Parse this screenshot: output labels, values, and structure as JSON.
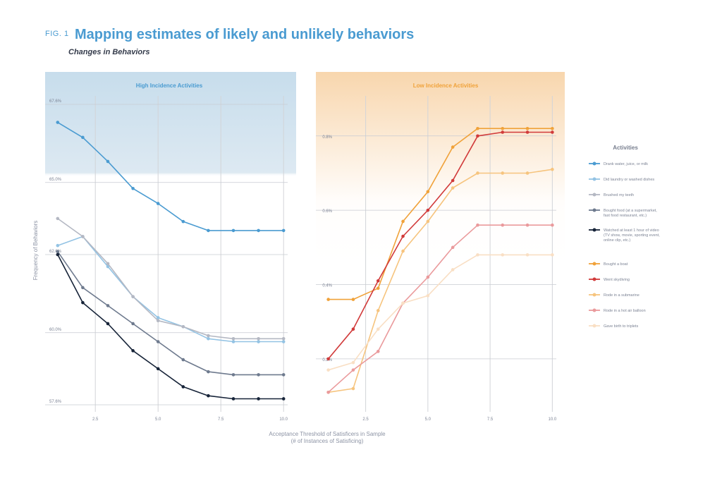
{
  "figure": {
    "label": "FIG. 1",
    "title": "Mapping estimates of likely and unlikely behaviors",
    "subtitle": "Changes in Behaviors",
    "ylabel": "Frequency of Behaviors",
    "xlabel_line1": "Acceptance Threshold of Satisficers in Sample",
    "xlabel_line2": "(# of Instances of Satisficing)",
    "legend_title": "Activities"
  },
  "chart_data": [
    {
      "type": "line",
      "title": "High Incidence Activities",
      "panel_color": "#4a9bd1",
      "x": [
        1,
        2,
        3,
        4,
        5,
        6,
        7,
        8,
        9,
        10
      ],
      "xticks": [
        "2.5",
        "5.0",
        "7.5",
        "10.0"
      ],
      "xtick_values": [
        2.5,
        5.0,
        7.5,
        10.0
      ],
      "yticks": [
        "57.6%",
        "60.0%",
        "62.6%",
        "65.0%",
        "67.6%"
      ],
      "ytick_values": [
        57.6,
        60.0,
        62.6,
        65.0,
        67.6
      ],
      "ylim": [
        57.6,
        67.6
      ],
      "xlim": [
        0.5,
        10.5
      ],
      "series": [
        {
          "name": "Drank water, juice, or milk",
          "color": "#4a9bd1",
          "values": [
            67.0,
            66.5,
            65.7,
            64.8,
            64.3,
            63.7,
            63.4,
            63.4,
            63.4,
            63.4
          ]
        },
        {
          "name": "Did laundry or washed dishes",
          "color": "#93c3e4",
          "values": [
            62.9,
            63.2,
            62.2,
            61.2,
            60.5,
            60.2,
            59.8,
            59.7,
            59.7,
            59.7
          ]
        },
        {
          "name": "Brushed my teeth",
          "color": "#b4b8c3",
          "values": [
            63.8,
            63.2,
            62.3,
            61.2,
            60.4,
            60.2,
            59.9,
            59.8,
            59.8,
            59.8
          ]
        },
        {
          "name": "Bought food (at a supermarket, fast food restaurant, etc.)",
          "color": "#6e7a8e",
          "values": [
            62.7,
            61.5,
            60.9,
            60.3,
            59.7,
            59.1,
            58.7,
            58.6,
            58.6,
            58.6
          ]
        },
        {
          "name": "Watched at least 1 hour of video (TV show, movie, sporting event, online clip, etc.)",
          "color": "#162338",
          "values": [
            62.6,
            61.0,
            60.3,
            59.4,
            58.8,
            58.2,
            57.9,
            57.8,
            57.8,
            57.8
          ]
        }
      ]
    },
    {
      "type": "line",
      "title": "Low Incidence Activities",
      "panel_color": "#f0a23a",
      "x": [
        1,
        2,
        3,
        4,
        5,
        6,
        7,
        8,
        9,
        10
      ],
      "xticks": [
        "2.5",
        "5.0",
        "7.5",
        "10.0"
      ],
      "xtick_values": [
        2.5,
        5.0,
        7.5,
        10.0
      ],
      "yticks": [
        "0.2%",
        "0.4%",
        "0.6%",
        "0.8%"
      ],
      "ytick_values": [
        0.2,
        0.4,
        0.6,
        0.8
      ],
      "ylim": [
        0.065,
        0.885
      ],
      "xlim": [
        0.5,
        10.5
      ],
      "series": [
        {
          "name": "Bought a boat",
          "color": "#f0a23a",
          "values": [
            0.36,
            0.36,
            0.39,
            0.57,
            0.65,
            0.77,
            0.82,
            0.82,
            0.82,
            0.82
          ]
        },
        {
          "name": "Went skydiving",
          "color": "#d13a3a",
          "values": [
            0.2,
            0.28,
            0.41,
            0.53,
            0.6,
            0.68,
            0.8,
            0.81,
            0.81,
            0.81
          ]
        },
        {
          "name": "Rode in a submarine",
          "color": "#f6c47e",
          "values": [
            0.11,
            0.12,
            0.33,
            0.49,
            0.57,
            0.66,
            0.7,
            0.7,
            0.7,
            0.71
          ]
        },
        {
          "name": "Rode in a hot air balloon",
          "color": "#ea9a9c",
          "values": [
            0.11,
            0.17,
            0.22,
            0.35,
            0.42,
            0.5,
            0.56,
            0.56,
            0.56,
            0.56
          ]
        },
        {
          "name": "Gave birth to triplets",
          "color": "#f9dfc4",
          "values": [
            0.17,
            0.19,
            0.28,
            0.35,
            0.37,
            0.44,
            0.48,
            0.48,
            0.48,
            0.48
          ]
        }
      ]
    }
  ]
}
